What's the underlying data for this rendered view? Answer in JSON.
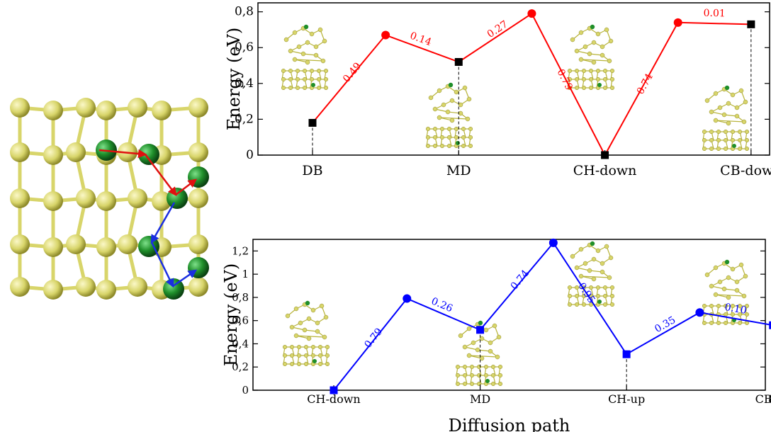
{
  "lattice": {
    "atom_color": "#d8d56a",
    "dopant_color": "#1f8f2a",
    "path_colors": [
      "#e01010",
      "#1a2ee0"
    ]
  },
  "chart_data": [
    {
      "type": "line",
      "series_color": "#ff0000",
      "ylabel": "Energy (eV)",
      "xlabel": "",
      "ylim": [
        0,
        0.85
      ],
      "yticks": [
        "0",
        "0,2",
        "0,4",
        "0,6",
        "0,8"
      ],
      "ytick_values": [
        0,
        0.2,
        0.4,
        0.6,
        0.8
      ],
      "categories": [
        "DB",
        "MD",
        "CH-down",
        "CB-down"
      ],
      "points": [
        {
          "x": 0,
          "y": 0.18,
          "kind": "minimum"
        },
        {
          "x": 0.5,
          "y": 0.67,
          "kind": "saddle"
        },
        {
          "x": 1,
          "y": 0.52,
          "kind": "minimum"
        },
        {
          "x": 1.5,
          "y": 0.79,
          "kind": "saddle"
        },
        {
          "x": 2,
          "y": 0.0,
          "kind": "minimum"
        },
        {
          "x": 2.5,
          "y": 0.74,
          "kind": "saddle"
        },
        {
          "x": 3,
          "y": 0.73,
          "kind": "minimum"
        }
      ],
      "barrier_labels": [
        "0.49",
        "0.14",
        "0.27",
        "0.79",
        "0.74",
        "0.01"
      ]
    },
    {
      "type": "line",
      "series_color": "#0000ff",
      "ylabel": "Energy (eV)",
      "xlabel": "Diffusion path",
      "ylim": [
        0,
        1.3
      ],
      "yticks": [
        "0",
        "0,2",
        "0,4",
        "0,6",
        "0,8",
        "1",
        "1,2"
      ],
      "ytick_values": [
        0,
        0.2,
        0.4,
        0.6,
        0.8,
        1.0,
        1.2
      ],
      "categories": [
        "CH-down",
        "MD",
        "CH-up",
        "CB-up"
      ],
      "edge_tick_label": "8",
      "points": [
        {
          "x": 0,
          "y": 0.0,
          "kind": "minimum"
        },
        {
          "x": 0.5,
          "y": 0.79,
          "kind": "saddle"
        },
        {
          "x": 1,
          "y": 0.52,
          "kind": "minimum"
        },
        {
          "x": 1.5,
          "y": 1.27,
          "kind": "saddle"
        },
        {
          "x": 2,
          "y": 0.31,
          "kind": "minimum"
        },
        {
          "x": 2.5,
          "y": 0.67,
          "kind": "saddle"
        },
        {
          "x": 3,
          "y": 0.56,
          "kind": "minimum"
        }
      ],
      "barrier_labels": [
        "0.79",
        "0.26",
        "0.74",
        "0.95",
        "0.35",
        "0.10"
      ]
    }
  ]
}
